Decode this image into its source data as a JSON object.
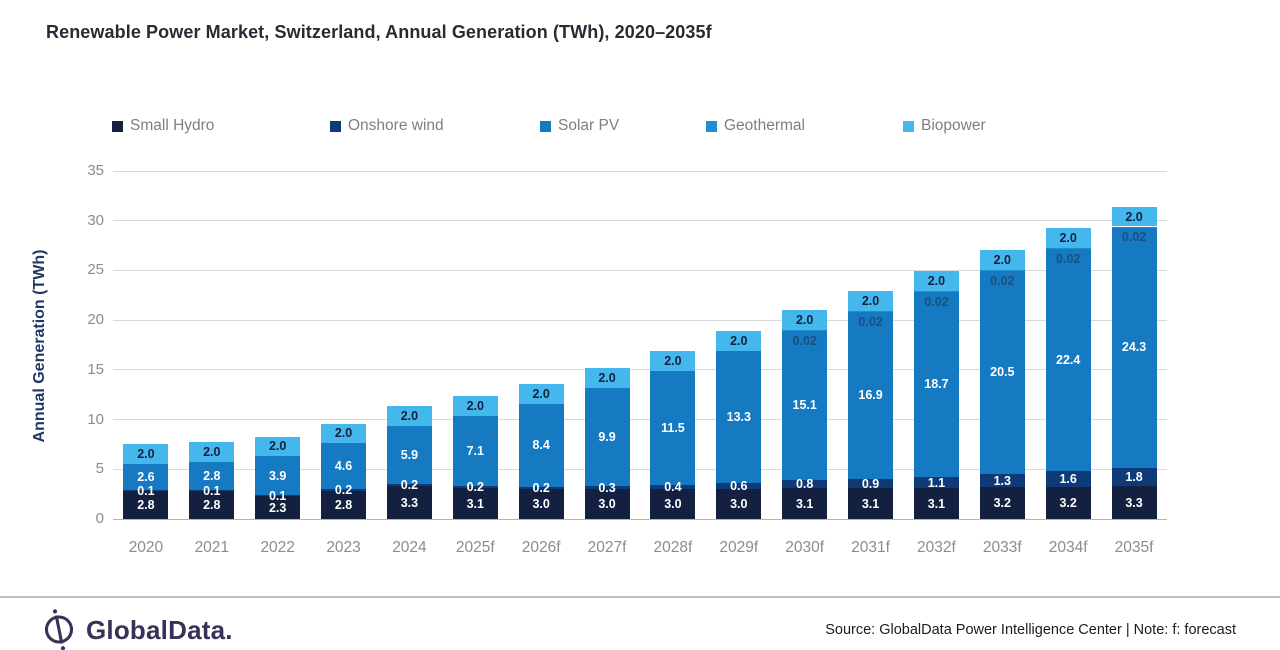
{
  "title": "Renewable Power Market, Switzerland, Annual Generation (TWh), 2020–2035f",
  "chart_data": {
    "type": "bar",
    "stacked": true,
    "title": "Renewable Power Market, Switzerland, Annual Generation (TWh), 2020–2035f",
    "categories": [
      "2020",
      "2021",
      "2022",
      "2023",
      "2024",
      "2025f",
      "2026f",
      "2027f",
      "2028f",
      "2029f",
      "2030f",
      "2031f",
      "2032f",
      "2033f",
      "2034f",
      "2035f"
    ],
    "series": [
      {
        "name": "Small Hydro",
        "color": "#14203f",
        "label_color": "#ffffff",
        "values": [
          2.8,
          2.8,
          2.3,
          2.8,
          3.3,
          3.1,
          3.0,
          3.0,
          3.0,
          3.0,
          3.1,
          3.1,
          3.1,
          3.2,
          3.2,
          3.3
        ]
      },
      {
        "name": "Onshore wind",
        "color": "#0f3a78",
        "label_color": "#ffffff",
        "values": [
          0.1,
          0.1,
          0.1,
          0.2,
          0.2,
          0.2,
          0.2,
          0.3,
          0.4,
          0.6,
          0.8,
          0.9,
          1.1,
          1.3,
          1.6,
          1.8
        ]
      },
      {
        "name": "Solar PV",
        "color": "#157ac1",
        "label_color": "#ffffff",
        "values": [
          2.6,
          2.8,
          3.9,
          4.6,
          5.9,
          7.1,
          8.4,
          9.9,
          11.5,
          13.3,
          15.1,
          16.9,
          18.7,
          20.5,
          22.4,
          24.3
        ]
      },
      {
        "name": "Geothermal",
        "color": "#208fd2",
        "label_color": "#1d4e80",
        "values": [
          0,
          0,
          0,
          0,
          0,
          0,
          0,
          0,
          0,
          0,
          0.02,
          0.02,
          0.02,
          0.02,
          0.02,
          0.02
        ]
      },
      {
        "name": "Biopower",
        "color": "#44b7ec",
        "label_color": "#16213f",
        "values": [
          2.0,
          2.0,
          2.0,
          2.0,
          2.0,
          2.0,
          2.0,
          2.0,
          2.0,
          2.0,
          2.0,
          2.0,
          2.0,
          2.0,
          2.0,
          2.0
        ]
      }
    ],
    "ylabel": "Annual Generation (TWh)",
    "ylim": [
      0,
      35
    ],
    "yticks": [
      0,
      5,
      10,
      15,
      20,
      25,
      30,
      35
    ],
    "grid": true,
    "legend_position": "top"
  },
  "footer": {
    "logo_text": "GlobalData.",
    "source": "Source: GlobalData Power Intelligence Center | Note: f: forecast"
  }
}
